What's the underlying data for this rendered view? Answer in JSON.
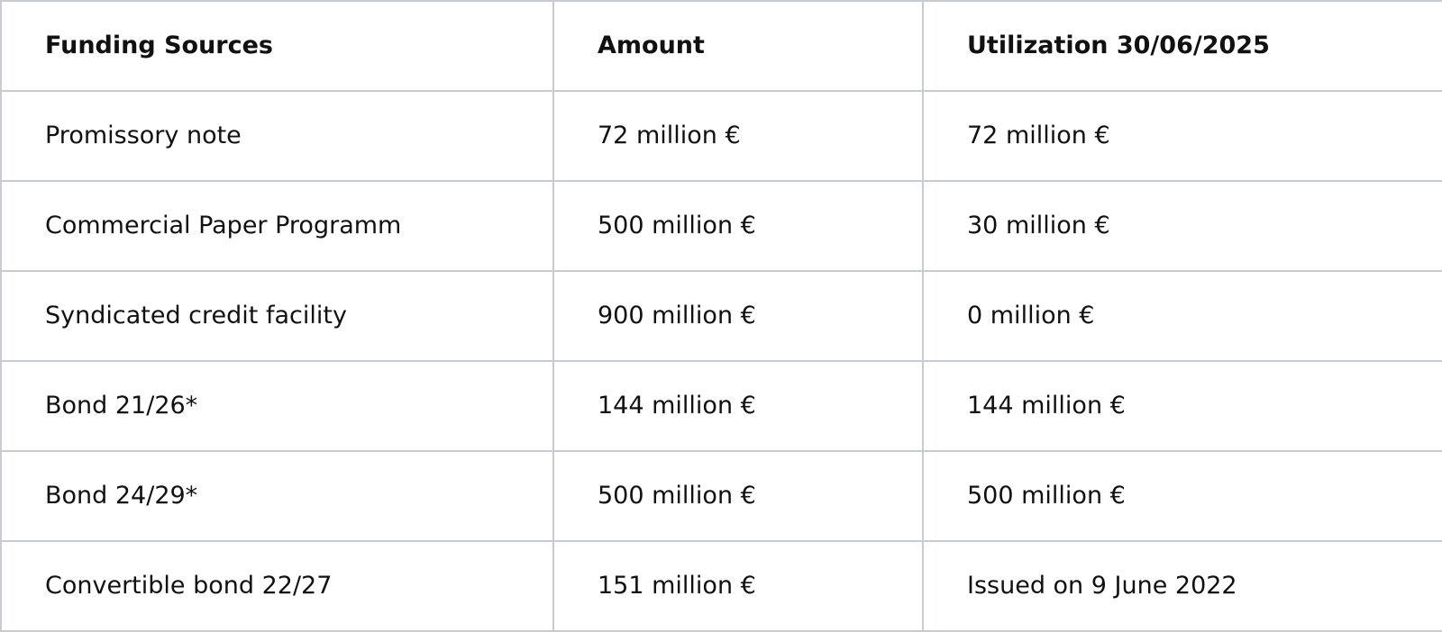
{
  "table": {
    "headers": [
      "Funding Sources",
      "Amount",
      "Utilization 30/06/2025"
    ],
    "rows": [
      [
        "Promissory note",
        "72 million €",
        "72 million €"
      ],
      [
        "Commercial Paper Programm",
        "500 million €",
        "30 million €"
      ],
      [
        "Syndicated credit facility",
        "900 million €",
        "0 million €"
      ],
      [
        "Bond 21/26*",
        "144 million €",
        "144 million €"
      ],
      [
        "Bond 24/29*",
        "500 million €",
        "500 million €"
      ],
      [
        "Convertible bond 22/27",
        "151 million €",
        "Issued on 9 June 2022"
      ]
    ]
  },
  "colors": {
    "border": "#c8ccd0",
    "text": "#111111",
    "background": "#ffffff"
  }
}
